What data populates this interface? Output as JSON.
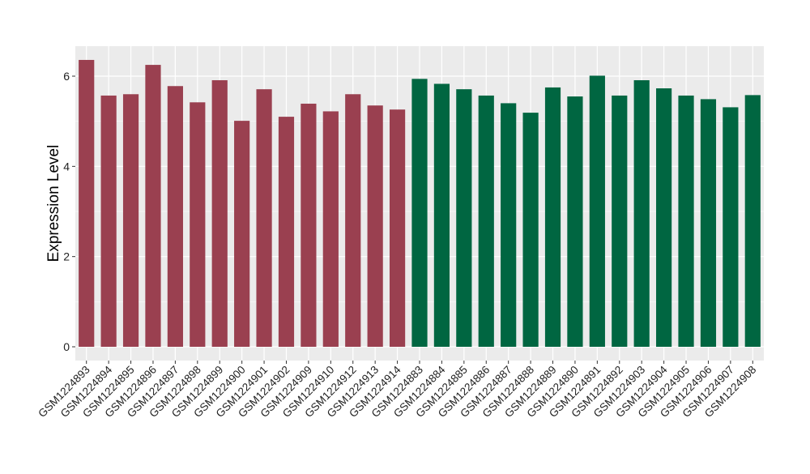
{
  "chart_data": {
    "type": "bar",
    "title": "",
    "xlabel": "",
    "ylabel": "Expression Level",
    "ylim": [
      -0.3,
      6.6
    ],
    "yticks": [
      0,
      2,
      4,
      6
    ],
    "grid": true,
    "legend": "none",
    "categories": [
      "GSM1224893",
      "GSM1224894",
      "GSM1224895",
      "GSM1224896",
      "GSM1224897",
      "GSM1224898",
      "GSM1224899",
      "GSM1224900",
      "GSM1224901",
      "GSM1224902",
      "GSM1224909",
      "GSM1224910",
      "GSM1224912",
      "GSM1224913",
      "GSM1224914",
      "GSM1224883",
      "GSM1224884",
      "GSM1224885",
      "GSM1224886",
      "GSM1224887",
      "GSM1224888",
      "GSM1224889",
      "GSM1224890",
      "GSM1224891",
      "GSM1224892",
      "GSM1224903",
      "GSM1224904",
      "GSM1224905",
      "GSM1224906",
      "GSM1224907",
      "GSM1224908"
    ],
    "values": [
      6.36,
      5.57,
      5.6,
      6.25,
      5.78,
      5.42,
      5.91,
      5.01,
      5.71,
      5.1,
      5.39,
      5.22,
      5.6,
      5.35,
      5.26,
      5.94,
      5.83,
      5.71,
      5.57,
      5.4,
      5.19,
      5.75,
      5.55,
      6.01,
      5.57,
      5.91,
      5.73,
      5.57,
      5.49,
      5.31,
      5.58
    ],
    "groups": [
      0,
      0,
      0,
      0,
      0,
      0,
      0,
      0,
      0,
      0,
      0,
      0,
      0,
      0,
      0,
      1,
      1,
      1,
      1,
      1,
      1,
      1,
      1,
      1,
      1,
      1,
      1,
      1,
      1,
      1,
      1
    ],
    "colors": [
      "#9A4050",
      "#006641"
    ]
  }
}
